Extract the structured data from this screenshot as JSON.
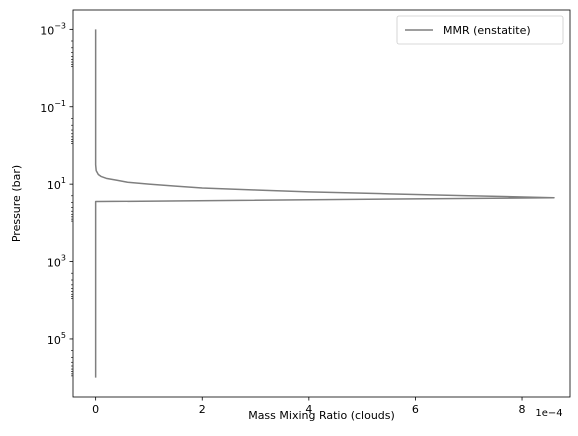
{
  "chart_data": {
    "type": "line",
    "title": "",
    "xlabel": "Mass Mixing Ratio (clouds)",
    "ylabel": "Pressure (bar)",
    "x_offset_label": "1e−4",
    "x_scale_factor": 0.0001,
    "xlim": [
      -4.25e-05,
      0.00089
    ],
    "ylim_log10": [
      -3.5,
      6.5
    ],
    "yscale": "log",
    "y_inverted": true,
    "grid": false,
    "legend_position": "upper right",
    "x_ticks": [
      {
        "value": 0,
        "label": "0"
      },
      {
        "value": 0.0002,
        "label": "2"
      },
      {
        "value": 0.0004,
        "label": "4"
      },
      {
        "value": 0.0006,
        "label": "6"
      },
      {
        "value": 0.0008,
        "label": "8"
      }
    ],
    "y_ticks": [
      {
        "log10": -3,
        "base": "10",
        "exp": "−3"
      },
      {
        "log10": -1,
        "base": "10",
        "exp": "−1"
      },
      {
        "log10": 1,
        "base": "10",
        "exp": "1"
      },
      {
        "log10": 3,
        "base": "10",
        "exp": "3"
      },
      {
        "log10": 5,
        "base": "10",
        "exp": "5"
      }
    ],
    "series": [
      {
        "name": "MMR (enstatite)",
        "color": "#7f7f7f",
        "points": [
          [
            0,
            -3.0
          ],
          [
            0,
            0.5
          ],
          [
            1e-06,
            0.65
          ],
          [
            5e-06,
            0.75
          ],
          [
            1e-05,
            0.8
          ],
          [
            2e-05,
            0.85
          ],
          [
            4e-05,
            0.9
          ],
          [
            6e-05,
            0.95
          ],
          [
            0.0001,
            1.0
          ],
          [
            0.00015,
            1.05
          ],
          [
            0.0002,
            1.1
          ],
          [
            0.0003,
            1.15
          ],
          [
            0.0004,
            1.2
          ],
          [
            0.00055,
            1.25
          ],
          [
            0.0007,
            1.3
          ],
          [
            0.00086,
            1.35
          ],
          [
            5e-06,
            1.45
          ],
          [
            0,
            1.45
          ],
          [
            0,
            6.0
          ]
        ]
      }
    ]
  }
}
